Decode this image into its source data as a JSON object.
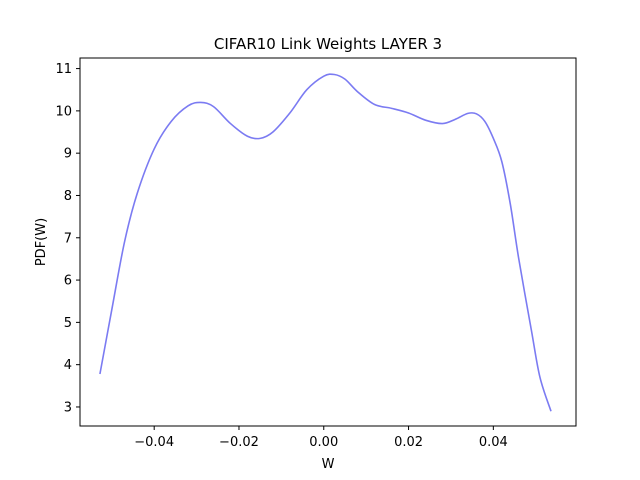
{
  "chart_data": {
    "type": "line",
    "title": "CIFAR10 Link Weights LAYER 3",
    "xlabel": "W",
    "ylabel": "PDF(W)",
    "xlim": [
      -0.0575,
      0.0595
    ],
    "ylim": [
      2.55,
      11.25
    ],
    "x_ticks": [
      -0.04,
      -0.02,
      0.0,
      0.02,
      0.04
    ],
    "x_tick_labels": [
      "−0.04",
      "−0.02",
      "0.00",
      "0.02",
      "0.04"
    ],
    "y_ticks": [
      3,
      4,
      5,
      6,
      7,
      8,
      9,
      10,
      11
    ],
    "y_tick_labels": [
      "3",
      "4",
      "5",
      "6",
      "7",
      "8",
      "9",
      "10",
      "11"
    ],
    "grid": false,
    "series": [
      {
        "color": "#7b7bf2",
        "x": [
          -0.0528,
          -0.05,
          -0.047,
          -0.044,
          -0.04,
          -0.036,
          -0.032,
          -0.029,
          -0.026,
          -0.022,
          -0.018,
          -0.015,
          -0.012,
          -0.008,
          -0.004,
          0.0,
          0.0025,
          0.005,
          0.008,
          0.012,
          0.016,
          0.02,
          0.024,
          0.028,
          0.031,
          0.034,
          0.036,
          0.038,
          0.04,
          0.042,
          0.044,
          0.046,
          0.049,
          0.051,
          0.0536
        ],
        "y": [
          3.78,
          5.3,
          6.9,
          8.05,
          9.1,
          9.75,
          10.12,
          10.2,
          10.1,
          9.7,
          9.4,
          9.35,
          9.5,
          9.95,
          10.5,
          10.82,
          10.86,
          10.75,
          10.45,
          10.15,
          10.06,
          9.95,
          9.78,
          9.7,
          9.8,
          9.94,
          9.93,
          9.75,
          9.35,
          8.8,
          7.8,
          6.5,
          4.8,
          3.7,
          2.9
        ]
      }
    ]
  }
}
